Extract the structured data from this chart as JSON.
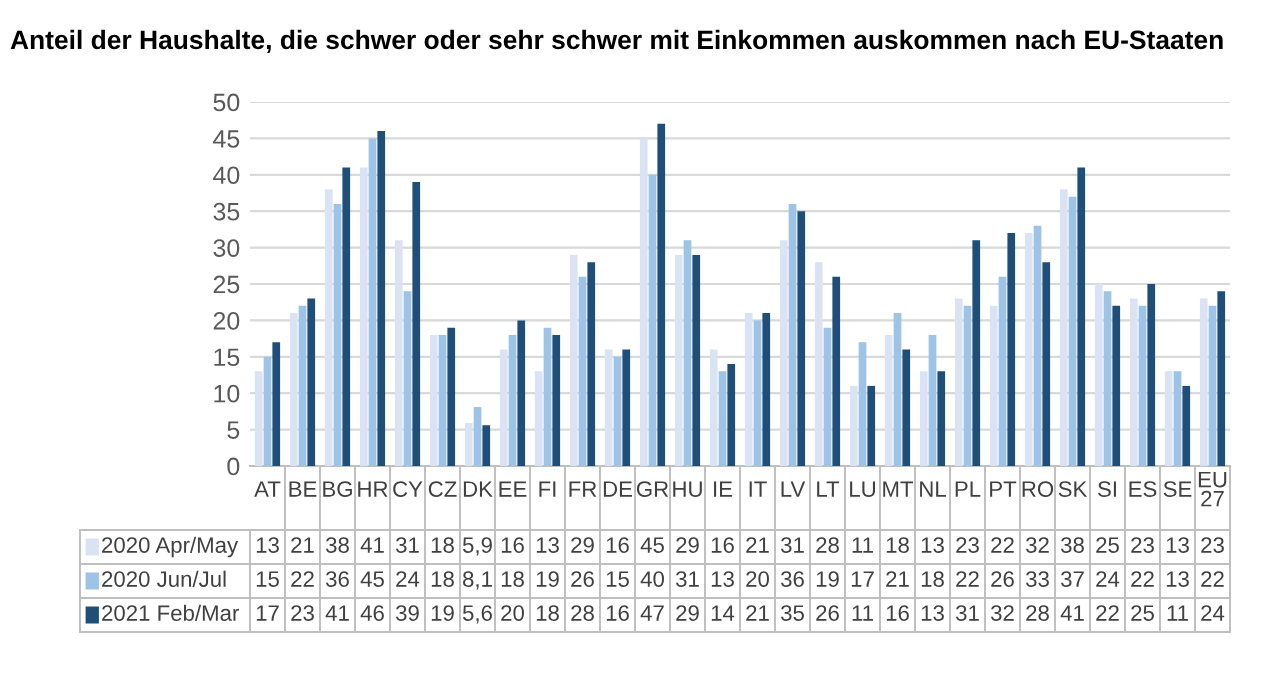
{
  "chart_data": {
    "type": "bar",
    "title": "Anteil der Haushalte, die schwer oder sehr schwer mit Einkommen auskommen nach EU-Staaten",
    "categories": [
      "AT",
      "BE",
      "BG",
      "HR",
      "CY",
      "CZ",
      "DK",
      "EE",
      "FI",
      "FR",
      "DE",
      "GR",
      "HU",
      "IE",
      "IT",
      "LV",
      "LT",
      "LU",
      "MT",
      "NL",
      "PL",
      "PT",
      "RO",
      "SK",
      "SI",
      "ES",
      "SE",
      "EU 27"
    ],
    "series": [
      {
        "name": "2020 Apr/May",
        "color": "#dae3f3",
        "values": [
          13,
          21,
          38,
          41,
          31,
          18,
          5.9,
          16,
          13,
          29,
          16,
          45,
          29,
          16,
          21,
          31,
          28,
          11,
          18,
          13,
          23,
          22,
          32,
          38,
          25,
          23,
          13,
          23
        ],
        "value_labels": [
          "13",
          "21",
          "38",
          "41",
          "31",
          "18",
          "5,9",
          "16",
          "13",
          "29",
          "16",
          "45",
          "29",
          "16",
          "21",
          "31",
          "28",
          "11",
          "18",
          "13",
          "23",
          "22",
          "32",
          "38",
          "25",
          "23",
          "13",
          "23"
        ]
      },
      {
        "name": "2020 Jun/Jul",
        "color": "#9dc3e6",
        "values": [
          15,
          22,
          36,
          45,
          24,
          18,
          8.1,
          18,
          19,
          26,
          15,
          40,
          31,
          13,
          20,
          36,
          19,
          17,
          21,
          18,
          22,
          26,
          33,
          37,
          24,
          22,
          13,
          22
        ],
        "value_labels": [
          "15",
          "22",
          "36",
          "45",
          "24",
          "18",
          "8,1",
          "18",
          "19",
          "26",
          "15",
          "40",
          "31",
          "13",
          "20",
          "36",
          "19",
          "17",
          "21",
          "18",
          "22",
          "26",
          "33",
          "37",
          "24",
          "22",
          "13",
          "22"
        ]
      },
      {
        "name": "2021 Feb/Mar",
        "color": "#1f4e79",
        "values": [
          17,
          23,
          41,
          46,
          39,
          19,
          5.6,
          20,
          18,
          28,
          16,
          47,
          29,
          14,
          21,
          35,
          26,
          11,
          16,
          13,
          31,
          32,
          28,
          41,
          22,
          25,
          11,
          24
        ],
        "value_labels": [
          "17",
          "23",
          "41",
          "46",
          "39",
          "19",
          "5,6",
          "20",
          "18",
          "28",
          "16",
          "47",
          "29",
          "14",
          "21",
          "35",
          "26",
          "11",
          "16",
          "13",
          "31",
          "32",
          "28",
          "41",
          "22",
          "25",
          "11",
          "24"
        ]
      }
    ],
    "ylim": [
      0,
      50
    ],
    "yticks": [
      0,
      5,
      10,
      15,
      20,
      25,
      30,
      35,
      40,
      45,
      50
    ],
    "grid": "y",
    "legend": "bottom"
  }
}
